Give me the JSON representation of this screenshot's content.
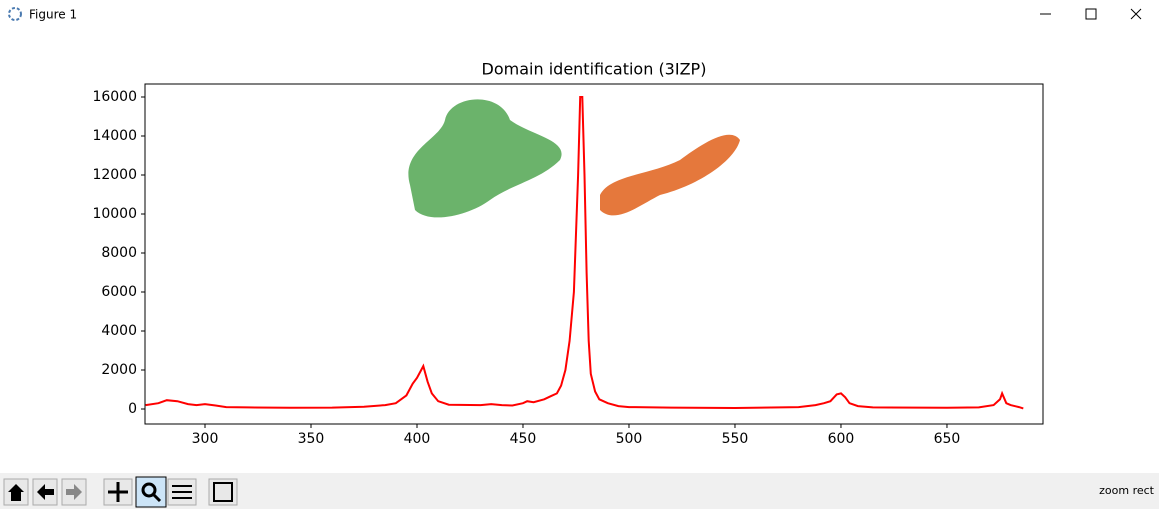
{
  "window": {
    "title": "Figure 1"
  },
  "status": "zoom rect",
  "chart_data": {
    "type": "line",
    "title": "Domain identification (3IZP)",
    "x": [
      272,
      278,
      282,
      287,
      292,
      296,
      300,
      305,
      310,
      320,
      340,
      360,
      375,
      385,
      390,
      395,
      398,
      400,
      403,
      405,
      407,
      410,
      415,
      430,
      435,
      440,
      445,
      450,
      452,
      455,
      460,
      463,
      466,
      468,
      470,
      472,
      474,
      476,
      477,
      478,
      479,
      480,
      481,
      482,
      484,
      486,
      490,
      495,
      500,
      520,
      550,
      580,
      588,
      592,
      595,
      598,
      600,
      602,
      604,
      608,
      615,
      650,
      665,
      672,
      675,
      676,
      678,
      680,
      684,
      686
    ],
    "values": [
      200,
      300,
      450,
      400,
      250,
      200,
      250,
      180,
      100,
      80,
      60,
      70,
      120,
      200,
      300,
      700,
      1300,
      1600,
      2200,
      1400,
      800,
      400,
      220,
      200,
      250,
      200,
      180,
      300,
      400,
      350,
      500,
      650,
      800,
      1200,
      2000,
      3500,
      6000,
      12000,
      16000,
      16000,
      12000,
      7000,
      3500,
      1800,
      900,
      500,
      300,
      150,
      100,
      70,
      50,
      100,
      200,
      300,
      400,
      750,
      800,
      600,
      300,
      150,
      80,
      60,
      80,
      200,
      500,
      800,
      300,
      200,
      100,
      30
    ],
    "color": "#ff0000",
    "xlim": [
      271.7,
      695.3
    ],
    "ylim": [
      -769,
      16667
    ],
    "xticks": [
      300,
      350,
      400,
      450,
      500,
      550,
      600,
      650
    ],
    "yticks": [
      0,
      2000,
      4000,
      6000,
      8000,
      10000,
      12000,
      14000,
      16000
    ]
  }
}
